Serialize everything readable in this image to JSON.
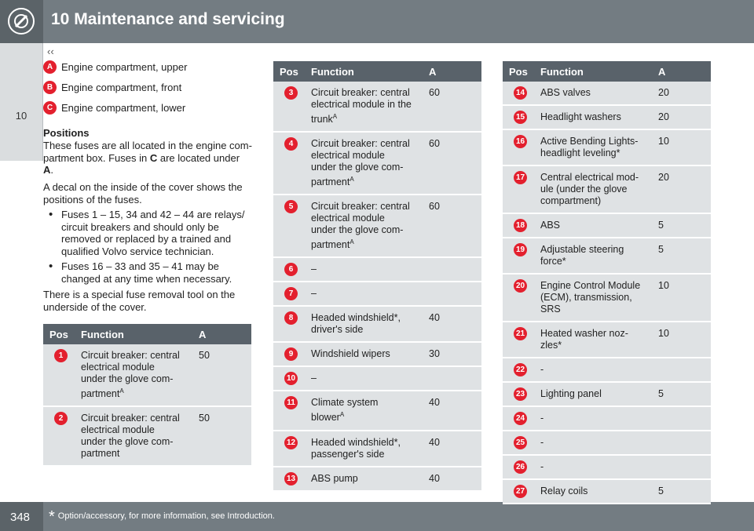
{
  "header": {
    "title": "10 Maintenance and servicing",
    "nav": "‹‹"
  },
  "side_tab": "10",
  "legend": [
    {
      "badge": "A",
      "text": "Engine compartment, upper"
    },
    {
      "badge": "B",
      "text": "Engine compartment, front"
    },
    {
      "badge": "C",
      "text": "Engine compartment, lower"
    }
  ],
  "positions": {
    "heading": "Positions",
    "paragraphs": [
      [
        [
          "These fuses are all located in the engine com-"
        ],
        [
          "partment box. Fuses in ",
          {
            "bold": "C"
          },
          " are located under"
        ],
        [
          {
            "bold": "A"
          },
          "."
        ]
      ],
      [
        [
          "A decal on the inside of the cover shows the"
        ],
        [
          "positions of the fuses."
        ]
      ]
    ],
    "bullets": [
      [
        "Fuses 1 – 15, 34 and 42 – 44 are relays/",
        "circuit breakers and should only be",
        "removed or replaced by a trained and",
        "qualified Volvo service technician."
      ],
      [
        "Fuses 16 – 33 and 35 – 41 may be",
        "changed at any time when necessary."
      ]
    ],
    "note": [
      "There is a special fuse removal tool on the",
      "underside of the cover."
    ]
  },
  "tables": [
    {
      "header": [
        "Pos",
        "Function",
        "A"
      ],
      "rows": [
        {
          "pos": 1,
          "function": [
            "Circuit breaker: central",
            "electrical module",
            "under the glove com-",
            "partment"
          ],
          "sup": "A",
          "a": 50
        },
        {
          "pos": 2,
          "function": [
            "Circuit breaker: central",
            "electrical module",
            "under the glove com-",
            "partment"
          ],
          "a": 50
        }
      ]
    },
    {
      "header": [
        "Pos",
        "Function",
        "A"
      ],
      "rows": [
        {
          "pos": 3,
          "function": [
            "Circuit breaker: central",
            "electrical module in the",
            "trunk"
          ],
          "sup": "A",
          "a": 60
        },
        {
          "pos": 4,
          "function": [
            "Circuit breaker: central",
            "electrical module",
            "under the glove com-",
            "partment"
          ],
          "sup": "A",
          "a": 60
        },
        {
          "pos": 5,
          "function": [
            "Circuit breaker: central",
            "electrical module",
            "under the glove com-",
            "partment"
          ],
          "sup": "A",
          "a": 60
        },
        {
          "pos": 6,
          "function": [
            "–"
          ]
        },
        {
          "pos": 7,
          "function": [
            "–"
          ]
        },
        {
          "pos": 8,
          "function": [
            "Headed windshield*,",
            "driver's side"
          ],
          "a": 40
        },
        {
          "pos": 9,
          "function": [
            "Windshield wipers"
          ],
          "a": 30
        },
        {
          "pos": 10,
          "function": [
            "–"
          ]
        },
        {
          "pos": 11,
          "function": [
            "Climate system",
            "blower"
          ],
          "sup": "A",
          "a": 40
        },
        {
          "pos": 12,
          "function": [
            "Headed windshield*,",
            "passenger's side"
          ],
          "a": 40
        },
        {
          "pos": 13,
          "function": [
            "ABS pump"
          ],
          "a": 40
        }
      ]
    },
    {
      "header": [
        "Pos",
        "Function",
        "A"
      ],
      "rows": [
        {
          "pos": 14,
          "function": [
            "ABS valves"
          ],
          "a": 20
        },
        {
          "pos": 15,
          "function": [
            "Headlight washers"
          ],
          "a": 20
        },
        {
          "pos": 16,
          "function": [
            "Active Bending Lights-",
            "headlight leveling*"
          ],
          "a": 10
        },
        {
          "pos": 17,
          "function": [
            "Central electrical mod-",
            "ule (under the glove",
            "compartment)"
          ],
          "a": 20
        },
        {
          "pos": 18,
          "function": [
            "ABS"
          ],
          "a": 5
        },
        {
          "pos": 19,
          "function": [
            "Adjustable steering",
            "force*"
          ],
          "a": 5
        },
        {
          "pos": 20,
          "function": [
            "Engine Control Module",
            "(ECM), transmission,",
            "SRS"
          ],
          "a": 10
        },
        {
          "pos": 21,
          "function": [
            "Heated washer noz-",
            "zles*"
          ],
          "a": 10
        },
        {
          "pos": 22,
          "function": [
            "-"
          ]
        },
        {
          "pos": 23,
          "function": [
            "Lighting panel"
          ],
          "a": 5
        },
        {
          "pos": 24,
          "function": [
            "-"
          ]
        },
        {
          "pos": 25,
          "function": [
            "-"
          ]
        },
        {
          "pos": 26,
          "function": [
            "-"
          ]
        },
        {
          "pos": 27,
          "function": [
            "Relay coils"
          ],
          "a": 5
        }
      ]
    }
  ],
  "footer": {
    "page": "348",
    "star": "*",
    "note": "Option/accessory, for more information, see Introduction."
  }
}
